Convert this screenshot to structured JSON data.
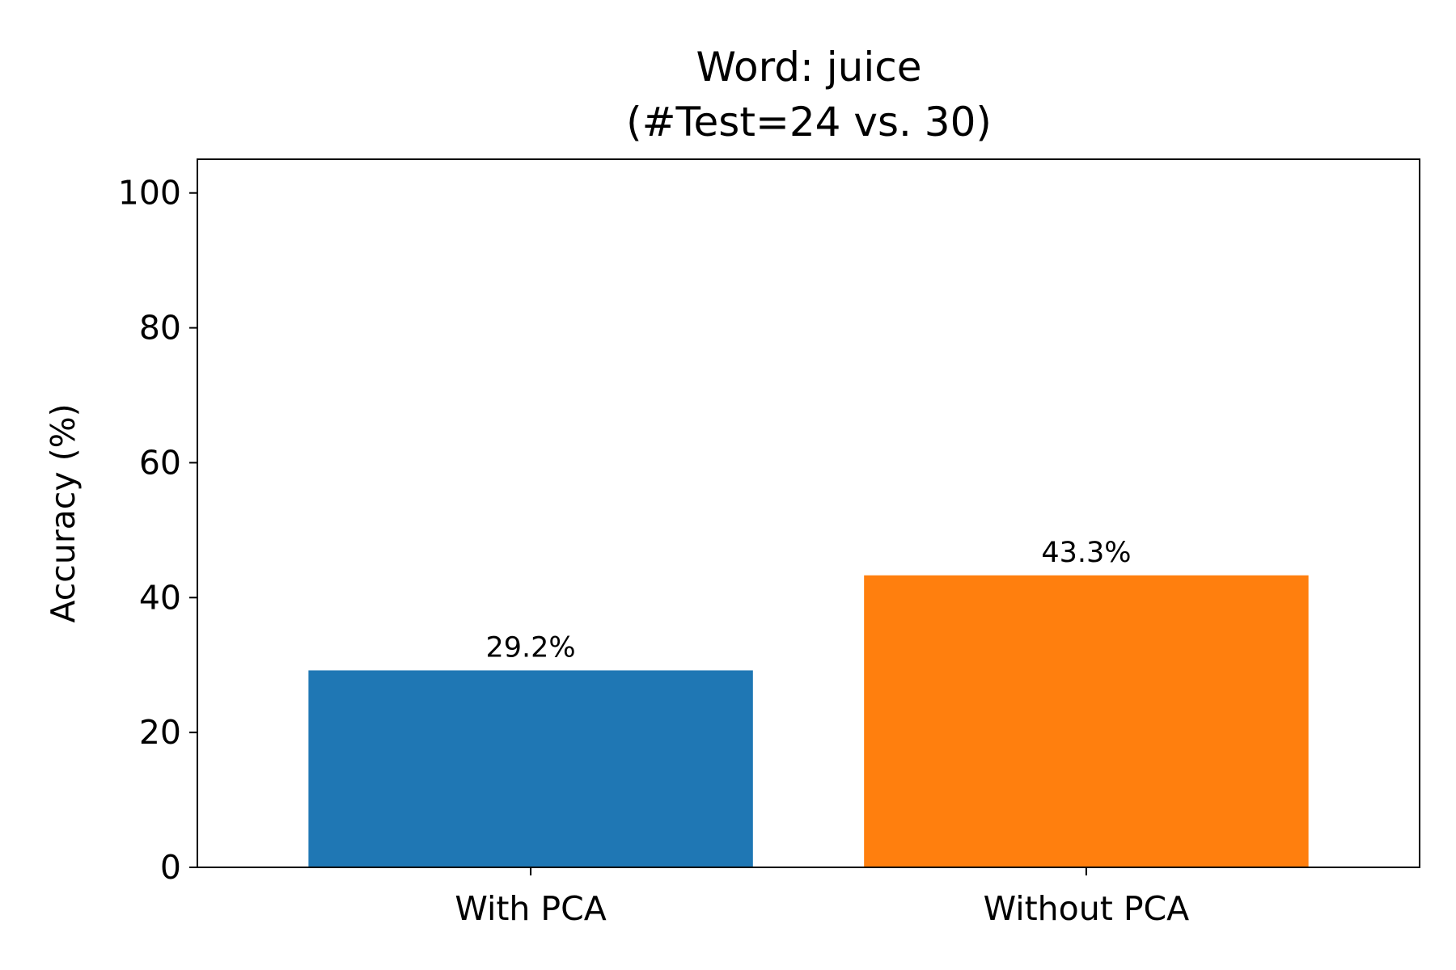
{
  "chart_data": {
    "type": "bar",
    "title": "Word: juice",
    "subtitle": "(#Test=24 vs. 30)",
    "xlabel": "",
    "ylabel": "Accuracy (%)",
    "categories": [
      "With PCA",
      "Without PCA"
    ],
    "values": [
      29.2,
      43.3
    ],
    "data_labels": [
      "29.2%",
      "43.3%"
    ],
    "colors": [
      "#1f77b4",
      "#ff7f0e"
    ],
    "ylim": [
      0,
      105
    ],
    "yticks": [
      0,
      20,
      40,
      60,
      80,
      100
    ],
    "ytick_labels": [
      "0",
      "20",
      "40",
      "60",
      "80",
      "100"
    ],
    "grid": false,
    "legend": "none"
  }
}
